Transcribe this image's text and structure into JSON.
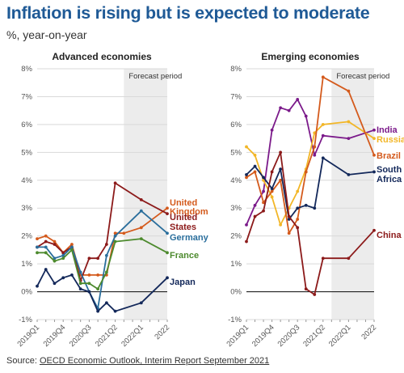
{
  "title": "Inflation is rising but is expected to moderate",
  "subtitle": "%, year-on-year",
  "source": {
    "prefix": "Source: ",
    "link_text": "OECD Economic Outlook, Interim Report September 2021"
  },
  "chart_data": [
    {
      "type": "line",
      "title": "Advanced economies",
      "forecast_label": "Forecast period",
      "forecast_range": [
        "2021Q3",
        "2022Q4"
      ],
      "ylim": [
        -1,
        8
      ],
      "yticks": [
        "-1%",
        "0%",
        "1%",
        "2%",
        "3%",
        "4%",
        "5%",
        "6%",
        "7%",
        "8%"
      ],
      "xtick_labels": [
        "2019Q1",
        "2019Q4",
        "2020Q3",
        "2021Q2",
        "2022Q1",
        "2022"
      ],
      "x": [
        "2019Q1",
        "2019Q2",
        "2019Q3",
        "2019Q4",
        "2020Q1",
        "2020Q2",
        "2020Q3",
        "2020Q4",
        "2021Q1",
        "2021Q2",
        "2021Q3",
        "2021Q4",
        "2022Q1",
        "2022Q2",
        "2022Q3",
        "2022Q4"
      ],
      "series": [
        {
          "name": "United Kingdom",
          "color": "#d45a1c",
          "values": [
            1.9,
            2.0,
            1.8,
            1.4,
            1.7,
            0.6,
            0.6,
            0.6,
            0.6,
            2.1,
            2.1,
            null,
            2.3,
            null,
            null,
            3.0
          ]
        },
        {
          "name": "United States",
          "color": "#8c1a1a",
          "values": [
            1.6,
            1.8,
            1.7,
            1.4,
            1.6,
            0.4,
            1.2,
            1.2,
            1.7,
            3.9,
            null,
            null,
            3.3,
            null,
            null,
            2.8
          ]
        },
        {
          "name": "Germany",
          "color": "#2a6e9c",
          "values": [
            1.6,
            1.6,
            1.2,
            1.3,
            1.6,
            0.7,
            0.0,
            -0.6,
            1.3,
            2.0,
            null,
            null,
            2.9,
            null,
            null,
            2.1
          ]
        },
        {
          "name": "France",
          "color": "#4d8a2e",
          "values": [
            1.4,
            1.4,
            1.1,
            1.2,
            1.5,
            0.3,
            0.3,
            0.1,
            0.7,
            1.8,
            null,
            null,
            1.9,
            null,
            null,
            1.4
          ]
        },
        {
          "name": "Japan",
          "color": "#13285a",
          "values": [
            0.2,
            0.8,
            0.3,
            0.5,
            0.6,
            0.1,
            0.0,
            -0.7,
            -0.4,
            -0.7,
            null,
            null,
            -0.4,
            null,
            null,
            0.5
          ]
        }
      ]
    },
    {
      "type": "line",
      "title": "Emerging economies",
      "forecast_label": "Forecast period",
      "forecast_range": [
        "2021Q3",
        "2022Q4"
      ],
      "ylim": [
        -1,
        8
      ],
      "yticks": [
        "-1%",
        "0%",
        "1%",
        "2%",
        "3%",
        "4%",
        "5%",
        "6%",
        "7%",
        "8%"
      ],
      "xtick_labels": [
        "2019Q1",
        "2019Q4",
        "2020Q3",
        "2021Q2",
        "2022Q1",
        "2022"
      ],
      "x": [
        "2019Q1",
        "2019Q2",
        "2019Q3",
        "2019Q4",
        "2020Q1",
        "2020Q2",
        "2020Q3",
        "2020Q4",
        "2021Q1",
        "2021Q2",
        "2021Q3",
        "2021Q4",
        "2022Q1",
        "2022Q2",
        "2022Q3",
        "2022Q4"
      ],
      "series": [
        {
          "name": "India",
          "color": "#7b1a8a",
          "values": [
            2.4,
            3.1,
            3.6,
            5.8,
            6.6,
            6.5,
            6.9,
            6.3,
            4.9,
            5.6,
            null,
            null,
            5.5,
            null,
            null,
            5.8
          ]
        },
        {
          "name": "Russia",
          "color": "#f2b627",
          "values": [
            5.2,
            4.9,
            4.0,
            3.4,
            2.4,
            3.0,
            3.6,
            4.4,
            5.7,
            6.0,
            null,
            null,
            6.1,
            null,
            null,
            5.5
          ]
        },
        {
          "name": "Brazil",
          "color": "#d45a1c",
          "values": [
            4.1,
            4.3,
            3.2,
            3.6,
            4.0,
            2.1,
            2.6,
            4.3,
            5.2,
            7.7,
            null,
            null,
            7.2,
            null,
            null,
            4.9
          ]
        },
        {
          "name": "South Africa",
          "color": "#13285a",
          "values": [
            4.2,
            4.5,
            4.1,
            3.7,
            4.4,
            2.6,
            3.0,
            3.1,
            3.0,
            4.8,
            null,
            null,
            4.2,
            null,
            null,
            4.3
          ]
        },
        {
          "name": "China",
          "color": "#8c1a1a",
          "values": [
            1.8,
            2.7,
            2.9,
            4.3,
            5.0,
            2.7,
            2.3,
            0.1,
            -0.1,
            1.2,
            null,
            null,
            1.2,
            null,
            null,
            2.2
          ]
        }
      ]
    }
  ]
}
